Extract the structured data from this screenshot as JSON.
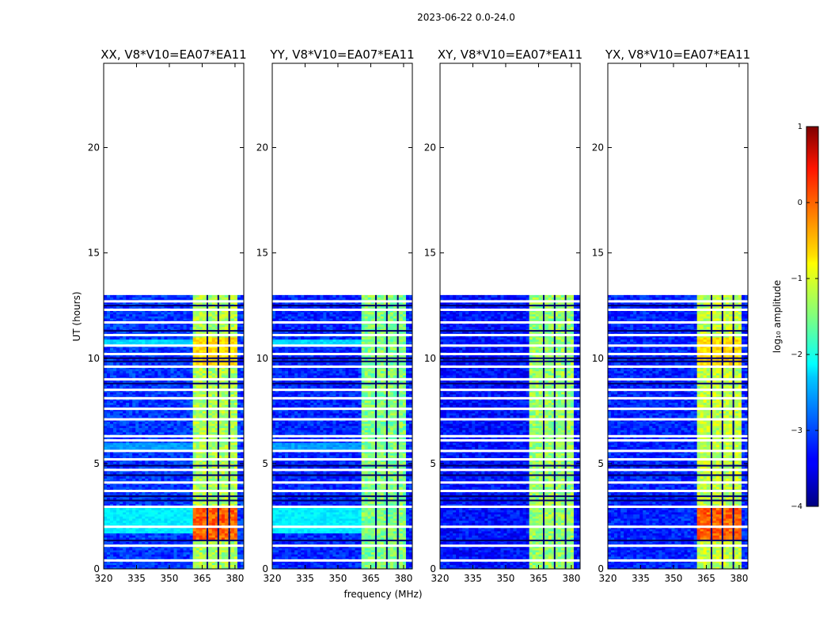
{
  "chart_data": {
    "type": "heatmap",
    "suptitle": "2023-06-22 0.0-24.0",
    "xlabel": "frequency (MHz)",
    "ylabel": "UT (hours)",
    "xlim": [
      320,
      384
    ],
    "ylim": [
      0,
      24
    ],
    "xticks": [
      "320",
      "335",
      "350",
      "365",
      "380"
    ],
    "yticks": [
      "0",
      "5",
      "10",
      "15",
      "20"
    ],
    "data_end_hour": 13.0,
    "strong_band_mhz": [
      360.5,
      380.5
    ],
    "panels": [
      {
        "title": "XX, V8*V10=EA07*EA11",
        "strong_level": -1.3,
        "background_level": -3.1,
        "hot_block": true
      },
      {
        "title": "YY, V8*V10=EA07*EA11",
        "strong_level": -1.5,
        "background_level": -3.2,
        "hot_block": false
      },
      {
        "title": "XY, V8*V10=EA07*EA11",
        "strong_level": -1.4,
        "background_level": -3.3,
        "hot_block": false
      },
      {
        "title": "YX, V8*V10=EA07*EA11",
        "strong_level": -1.2,
        "background_level": -3.2,
        "hot_block": true
      }
    ],
    "colorbar": {
      "label": "log₁₀ amplitude",
      "range": [
        -4,
        1
      ],
      "ticks": [
        "1",
        "0",
        "−1",
        "−2",
        "−3",
        "−4"
      ],
      "colormap": "jet"
    }
  }
}
